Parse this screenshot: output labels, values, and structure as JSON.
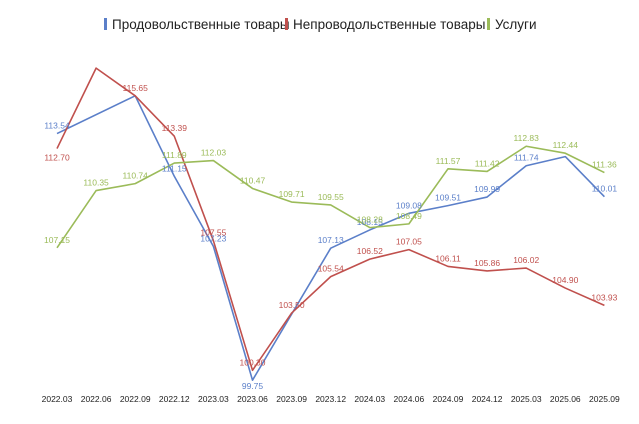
{
  "chart_data": {
    "type": "line",
    "categories": [
      "2022.03",
      "2022.06",
      "2022.09",
      "2022.12",
      "2023.03",
      "2023.06",
      "2023.09",
      "2023.12",
      "2024.03",
      "2024.06",
      "2024.09",
      "2024.12",
      "2025.03",
      "2025.06",
      "2025.09"
    ],
    "series": [
      {
        "name": "Продовольственные товары",
        "color": "#5b7fc9",
        "values": [
          113.54,
          null,
          115.65,
          111.15,
          107.23,
          99.75,
          null,
          107.13,
          108.15,
          109.08,
          109.51,
          109.99,
          111.74,
          112.25,
          110.01
        ],
        "labels": [
          "113.54",
          "",
          "",
          "111.15",
          "107.23",
          "99.75",
          "",
          "107.13",
          "108.15",
          "109.08",
          "109.51",
          "109.99",
          "111.74",
          "",
          "110.01"
        ]
      },
      {
        "name": "Непроводольственные товары",
        "color": "#c0504d",
        "values": [
          112.7,
          117.2,
          115.65,
          113.39,
          107.55,
          100.3,
          103.5,
          105.54,
          106.52,
          107.05,
          106.11,
          105.86,
          106.02,
          104.9,
          103.93
        ],
        "labels": [
          "112.70",
          "",
          "115.65",
          "113.39",
          "107.55",
          "100.30",
          "103.50",
          "105.54",
          "106.52",
          "107.05",
          "106.11",
          "105.86",
          "106.02",
          "104.90",
          "103.93"
        ]
      },
      {
        "name": "Услуги",
        "color": "#9bbb59",
        "values": [
          107.15,
          110.35,
          110.74,
          111.89,
          112.03,
          110.47,
          109.71,
          109.55,
          108.28,
          108.49,
          111.57,
          111.42,
          112.83,
          112.44,
          111.36
        ],
        "labels": [
          "107.15",
          "110.35",
          "110.74",
          "111.89",
          "112.03",
          "110.47",
          "109.71",
          "109.55",
          "108.28",
          "108.49",
          "111.57",
          "111.42",
          "112.83",
          "112.44",
          "111.36"
        ]
      }
    ],
    "ylim": [
      99.2,
      118.1
    ],
    "grid": false,
    "legend_position": "top"
  }
}
